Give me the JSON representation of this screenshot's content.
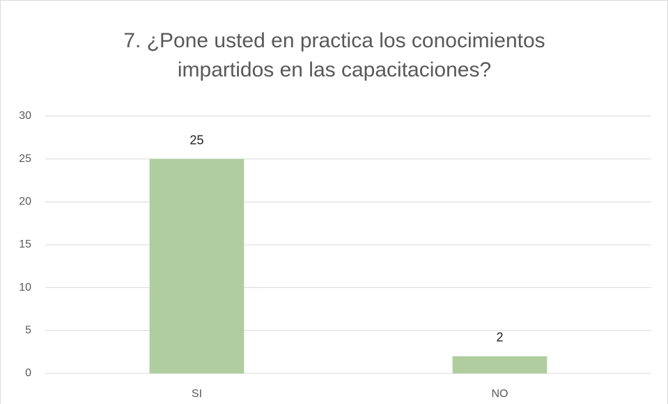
{
  "chart_data": {
    "type": "bar",
    "title": "7. ¿Pone usted en practica los conocimientos impartidos en las capacitaciones?",
    "categories": [
      "SI",
      "NO"
    ],
    "values": [
      25,
      2
    ],
    "color": "#afcd9f",
    "ylim": [
      0,
      30
    ],
    "yticks": [
      0,
      5,
      10,
      15,
      20,
      25,
      30
    ],
    "grid": true,
    "data_labels": true
  }
}
